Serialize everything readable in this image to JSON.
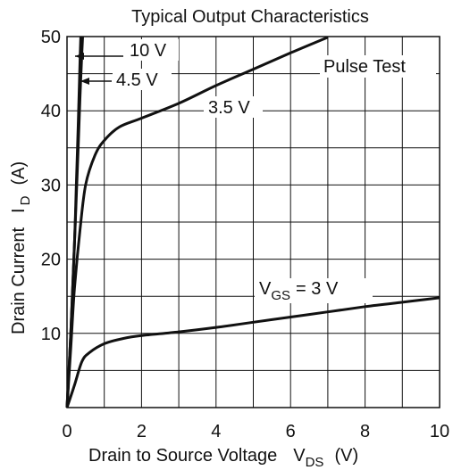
{
  "chart_data": {
    "type": "line",
    "title": "Typical Output Characteristics",
    "xlabel": "Drain to Source Voltage",
    "xlabel_symbol": "V",
    "xlabel_subscript": "DS",
    "xlabel_unit": "(V)",
    "ylabel": "Drain Current",
    "ylabel_symbol": "I",
    "ylabel_subscript": "D",
    "ylabel_unit": "(A)",
    "xlim": [
      0,
      10
    ],
    "ylim": [
      0,
      50
    ],
    "x_ticks": [
      0,
      2,
      4,
      6,
      8,
      10
    ],
    "y_ticks": [
      10,
      20,
      30,
      40,
      50
    ],
    "x_tick_labels": [
      "0",
      "2",
      "4",
      "6",
      "8",
      "10"
    ],
    "y_tick_labels": [
      "10",
      "20",
      "30",
      "40",
      "50"
    ],
    "grid": true,
    "note": "Pulse Test",
    "series": [
      {
        "name": "10 V",
        "points": [
          [
            0,
            0
          ],
          [
            0.1,
            10
          ],
          [
            0.2,
            22
          ],
          [
            0.3,
            35
          ],
          [
            0.35,
            42
          ],
          [
            0.4,
            48
          ],
          [
            0.42,
            50
          ]
        ]
      },
      {
        "name": "4.5 V",
        "points": [
          [
            0,
            0
          ],
          [
            0.1,
            10
          ],
          [
            0.2,
            22
          ],
          [
            0.25,
            30
          ],
          [
            0.3,
            38
          ],
          [
            0.35,
            47
          ],
          [
            0.37,
            50
          ]
        ]
      },
      {
        "name": "3.5 V",
        "points": [
          [
            0,
            0
          ],
          [
            0.1,
            8
          ],
          [
            0.2,
            16
          ],
          [
            0.35,
            24
          ],
          [
            0.5,
            30
          ],
          [
            0.75,
            34
          ],
          [
            1.0,
            36
          ],
          [
            1.4,
            37.8
          ],
          [
            2.0,
            39
          ],
          [
            3.0,
            41
          ],
          [
            4.0,
            43.4
          ],
          [
            5.0,
            45.6
          ],
          [
            6.0,
            47.8
          ],
          [
            7.0,
            49.9
          ]
        ]
      },
      {
        "name": "3 V",
        "label_prefix": "V",
        "label_subscript": "GS",
        "label_suffix": "= 3 V",
        "points": [
          [
            0,
            0
          ],
          [
            0.2,
            3
          ],
          [
            0.4,
            6.2
          ],
          [
            0.6,
            7.4
          ],
          [
            1.0,
            8.6
          ],
          [
            1.5,
            9.3
          ],
          [
            2.0,
            9.7
          ],
          [
            3.0,
            10.2
          ],
          [
            4.0,
            10.8
          ],
          [
            5.0,
            11.5
          ],
          [
            6.0,
            12.2
          ],
          [
            7.0,
            12.9
          ],
          [
            8.0,
            13.6
          ],
          [
            9.0,
            14.2
          ],
          [
            10.0,
            14.8
          ]
        ]
      }
    ]
  }
}
